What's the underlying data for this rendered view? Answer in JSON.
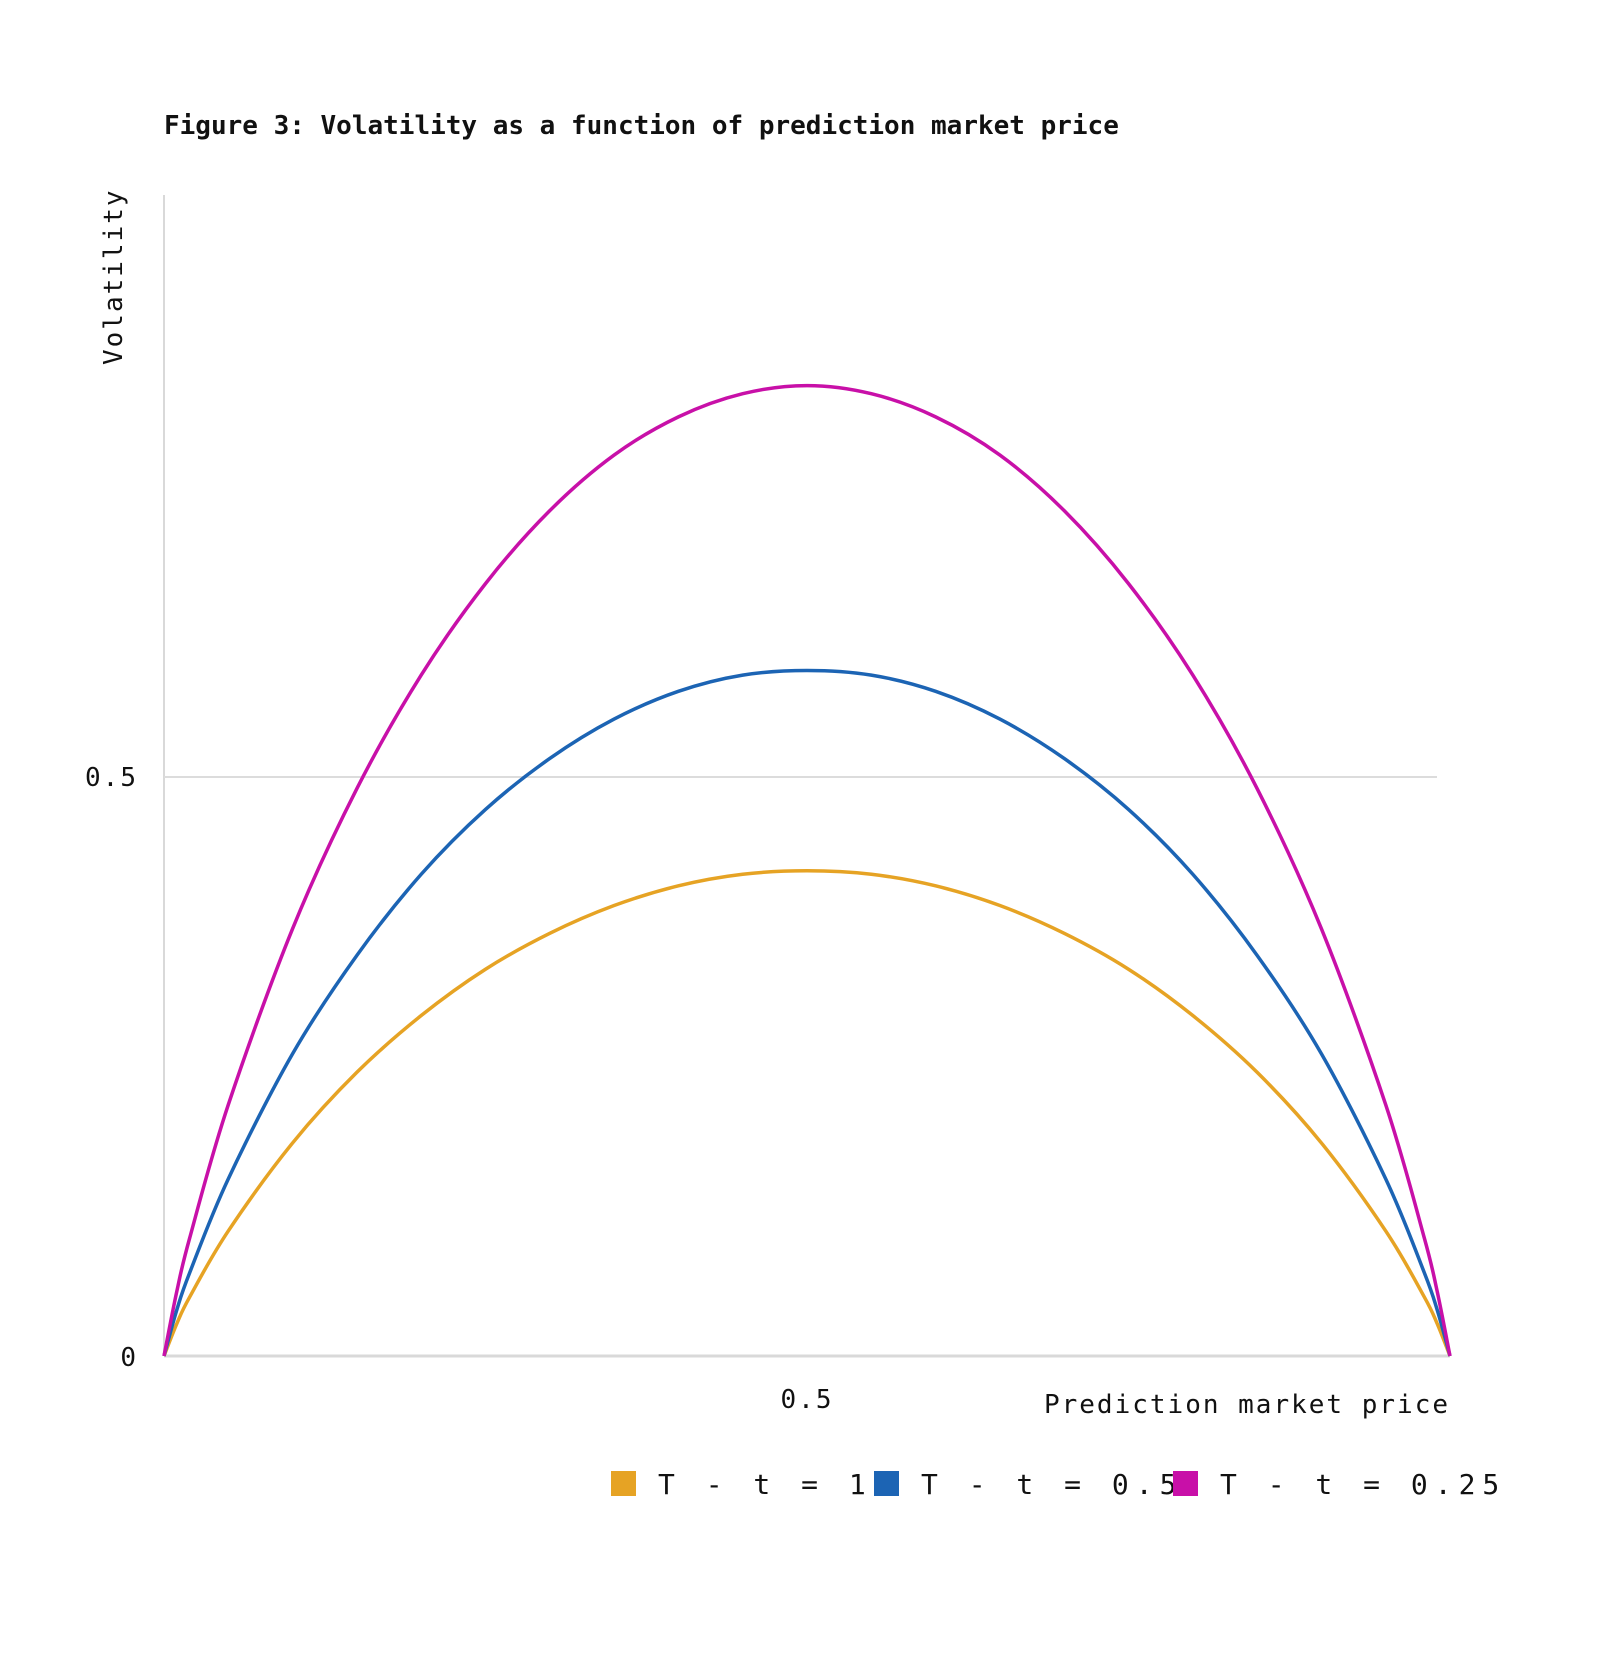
{
  "chart_data": {
    "type": "line",
    "title": "Figure 3: Volatility as a function of prediction market price",
    "xlabel": "Prediction market price",
    "ylabel": "Volatility",
    "xlim": [
      0,
      1
    ],
    "ylim": [
      0,
      1
    ],
    "x_ticks": [
      {
        "value": 0.5,
        "label": "0.5"
      }
    ],
    "y_ticks": [
      {
        "value": 0,
        "label": "0"
      },
      {
        "value": 0.5,
        "label": "0.5"
      }
    ],
    "grid": "horizontal at y = 0.5",
    "legend_position": "bottom-right",
    "x": [
      0,
      0.01,
      0.02,
      0.05,
      0.1,
      0.15,
      0.2,
      0.25,
      0.3,
      0.35,
      0.4,
      0.45,
      0.5,
      0.55,
      0.6,
      0.65,
      0.7,
      0.75,
      0.8,
      0.85,
      0.9,
      0.95,
      0.98,
      0.99,
      1
    ],
    "series": [
      {
        "name": "T - t = 1",
        "color": "#E6A324",
        "values": [
          0,
          0.028,
          0.051,
          0.108,
          0.184,
          0.245,
          0.294,
          0.334,
          0.365,
          0.389,
          0.406,
          0.416,
          0.419,
          0.416,
          0.406,
          0.389,
          0.365,
          0.334,
          0.294,
          0.245,
          0.184,
          0.108,
          0.051,
          0.028,
          0
        ]
      },
      {
        "name": "T - t = 0.5",
        "color": "#1C64B4",
        "values": [
          0,
          0.04,
          0.072,
          0.153,
          0.261,
          0.346,
          0.416,
          0.472,
          0.516,
          0.55,
          0.574,
          0.588,
          0.592,
          0.588,
          0.574,
          0.55,
          0.516,
          0.472,
          0.416,
          0.346,
          0.261,
          0.153,
          0.072,
          0.04,
          0
        ]
      },
      {
        "name": "T - t = 0.25",
        "color": "#C810A8",
        "values": [
          0,
          0.056,
          0.102,
          0.217,
          0.369,
          0.49,
          0.588,
          0.667,
          0.73,
          0.778,
          0.811,
          0.831,
          0.838,
          0.831,
          0.811,
          0.778,
          0.73,
          0.667,
          0.588,
          0.49,
          0.369,
          0.217,
          0.102,
          0.056,
          0
        ]
      }
    ]
  }
}
